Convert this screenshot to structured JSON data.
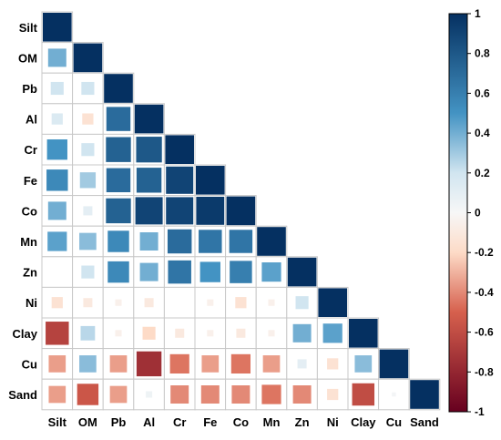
{
  "chart_data": {
    "type": "heatmap",
    "subtype": "correlation-matrix-lower-triangle",
    "variables": [
      "Silt",
      "OM",
      "Pb",
      "Al",
      "Cr",
      "Fe",
      "Co",
      "Mn",
      "Zn",
      "Ni",
      "Clay",
      "Cu",
      "Sand"
    ],
    "matrix": [
      [
        1.0
      ],
      [
        0.4,
        1.0
      ],
      [
        0.2,
        0.2,
        1.0
      ],
      [
        0.15,
        -0.15,
        0.7,
        1.0
      ],
      [
        0.5,
        0.2,
        0.75,
        0.8,
        1.0
      ],
      [
        0.55,
        0.3,
        0.7,
        0.75,
        0.9,
        1.0
      ],
      [
        0.4,
        0.1,
        0.75,
        0.9,
        0.9,
        0.95,
        1.0
      ],
      [
        0.45,
        0.35,
        0.55,
        0.4,
        0.7,
        0.65,
        0.65,
        1.0
      ],
      [
        0.0,
        0.2,
        0.55,
        0.4,
        0.65,
        0.5,
        0.6,
        0.45,
        1.0
      ],
      [
        -0.15,
        -0.1,
        -0.05,
        -0.1,
        0.0,
        -0.05,
        -0.15,
        -0.05,
        0.2,
        1.0
      ],
      [
        -0.65,
        0.25,
        -0.05,
        -0.2,
        -0.1,
        -0.05,
        -0.1,
        -0.05,
        0.4,
        0.45,
        1.0
      ],
      [
        -0.35,
        0.35,
        -0.35,
        -0.75,
        -0.45,
        -0.35,
        -0.45,
        -0.35,
        0.1,
        -0.15,
        0.35,
        1.0
      ],
      [
        -0.35,
        -0.55,
        -0.35,
        0.05,
        -0.4,
        -0.4,
        -0.4,
        -0.45,
        -0.4,
        -0.15,
        -0.6,
        0.02,
        1.0
      ]
    ],
    "colorbar": {
      "range": [
        -1,
        1
      ],
      "ticks": [
        "1",
        "0.8",
        "0.6",
        "0.4",
        "0.2",
        "0",
        "-0.2",
        "-0.4",
        "-0.6",
        "-0.8",
        "-1"
      ],
      "tick_values": [
        1,
        0.8,
        0.6,
        0.4,
        0.2,
        0,
        -0.2,
        -0.4,
        -0.6,
        -0.8,
        -1
      ],
      "colors": {
        "neg_strong": "#67001f",
        "neg_mid": "#d6604d",
        "neg_light": "#fddbc7",
        "zero": "#f7f7f7",
        "pos_light": "#d1e5f0",
        "pos_mid": "#4393c3",
        "pos_strong": "#053061"
      }
    },
    "grid_color": "#c8c8c8",
    "title": "",
    "xlabel": "",
    "ylabel": ""
  }
}
